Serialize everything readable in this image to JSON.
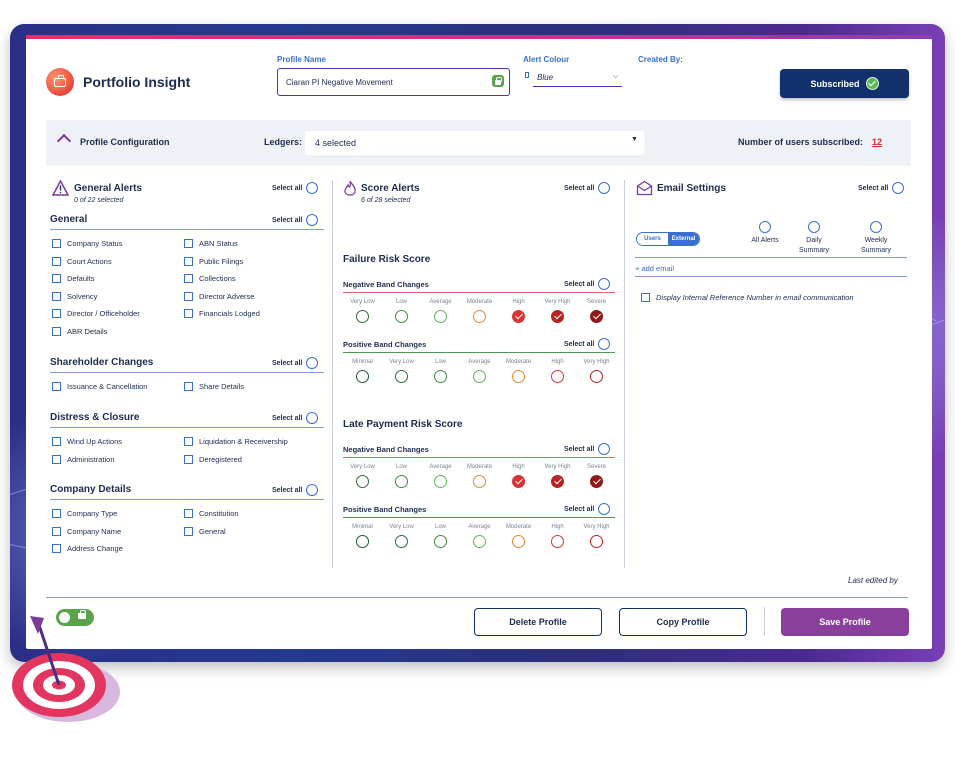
{
  "header": {
    "app_title": "Portfolio Insight",
    "profile_name_label": "Profile Name",
    "profile_name_value": "Ciaran PI Negative Movement",
    "alert_colour_label": "Alert Colour",
    "alert_colour_value": "Blue",
    "created_by_label": "Created By:",
    "subscribed_label": "Subscribed"
  },
  "config": {
    "title": "Profile Configuration",
    "ledgers_label": "Ledgers:",
    "ledgers_value": "4 selected",
    "users_subscribed_label": "Number of users subscribed:",
    "users_subscribed_count": "12"
  },
  "general_alerts": {
    "title": "General Alerts",
    "count": "0 of 22 selected",
    "select_all": "Select all",
    "groups": [
      {
        "title": "General",
        "select_all": "Select all",
        "left": [
          "Company Status",
          "Court Actions",
          "Defaults",
          "Solvency",
          "Director / Officeholder",
          "ABR Details"
        ],
        "right": [
          "ABN Status",
          "Public Filings",
          "Collections",
          "Director Adverse",
          "Financials Lodged"
        ]
      },
      {
        "title": "Shareholder Changes",
        "select_all": "Select all",
        "left": [
          "Issuance & Cancellation"
        ],
        "right": [
          "Share Details"
        ]
      },
      {
        "title": "Distress & Closure",
        "select_all": "Select all",
        "left": [
          "Wind Up Actions",
          "Administration"
        ],
        "right": [
          "Liquidation & Receivership",
          "Deregistered"
        ]
      },
      {
        "title": "Company Details",
        "select_all": "Select all",
        "left": [
          "Company Type",
          "Company Name",
          "Address Change"
        ],
        "right": [
          "Constitution",
          "General"
        ]
      }
    ]
  },
  "score_alerts": {
    "title": "Score Alerts",
    "count": "6 of 28 selected",
    "select_all": "Select all",
    "failure": {
      "title": "Failure Risk Score",
      "negative": {
        "title": "Negative Band Changes",
        "select_all": "Select all",
        "labels": [
          "Very Low",
          "Low",
          "Average",
          "Moderate",
          "High",
          "Very High",
          "Severe"
        ],
        "checked": [
          false,
          false,
          false,
          false,
          true,
          true,
          true
        ]
      },
      "positive": {
        "title": "Positive Band Changes",
        "select_all": "Select all",
        "labels": [
          "Minimal",
          "Very Low",
          "Low",
          "Average",
          "Moderate",
          "High",
          "Very High"
        ],
        "checked": [
          false,
          false,
          false,
          false,
          false,
          false,
          false
        ]
      }
    },
    "late_payment": {
      "title": "Late Payment Risk Score",
      "negative": {
        "title": "Negative Band Changes",
        "select_all": "Select all",
        "labels": [
          "Very Low",
          "Low",
          "Average",
          "Moderate",
          "High",
          "Very High",
          "Severe"
        ],
        "checked": [
          false,
          false,
          false,
          false,
          true,
          true,
          true
        ]
      },
      "positive": {
        "title": "Positive Band Changes",
        "select_all": "Select all",
        "labels": [
          "Minimal",
          "Very Low",
          "Low",
          "Average",
          "Moderate",
          "High",
          "Very High"
        ],
        "checked": [
          false,
          false,
          false,
          false,
          false,
          false,
          false
        ]
      }
    },
    "colors": {
      "Very Low": "#2e6b3a",
      "Low": "#3f8a3f",
      "Average": "#62b25a",
      "Moderate": "#e5892a",
      "High": "#d93434",
      "Very High": "#b82323",
      "Severe": "#8e1a1a",
      "Minimal": "#1f5a31"
    },
    "negative_colors": [
      "#2e6b3a",
      "#3f8a3f",
      "#62b25a",
      "#e5892a",
      "#d93434",
      "#b82323",
      "#8e1a1a"
    ],
    "positive_colors": [
      "#1f5a31",
      "#2e6b3a",
      "#3f8a3f",
      "#62b25a",
      "#e5892a",
      "#d93434",
      "#b82323"
    ]
  },
  "email_settings": {
    "title": "Email Settings",
    "select_all": "Select all",
    "tabs": [
      "Users",
      "External"
    ],
    "columns": [
      "All Alerts",
      "Daily Summary",
      "Weekly Summary"
    ],
    "add_email": "+ add email",
    "display_ref_label": "Display Internal Reference Number in email communication"
  },
  "footer": {
    "last_edited": "Last edited by",
    "delete_label": "Delete Profile",
    "copy_label": "Copy Profile",
    "save_label": "Save Profile"
  }
}
